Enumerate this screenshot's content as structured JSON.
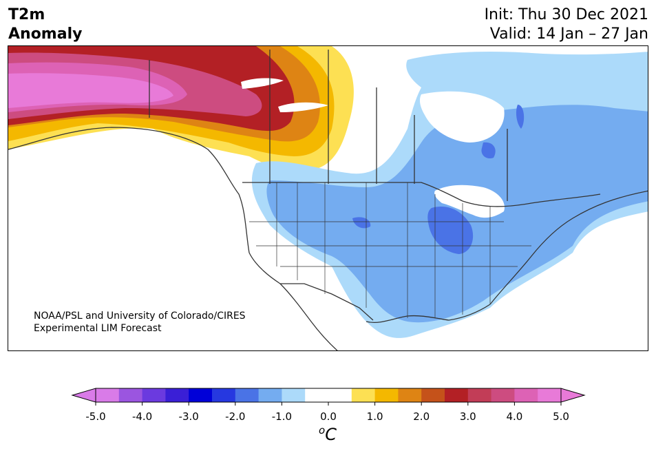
{
  "header": {
    "title_line1": "T2m",
    "title_line2": "Anomaly",
    "init": "Init: Thu 30 Dec 2021",
    "valid": "Valid: 14 Jan – 27 Jan"
  },
  "credit": {
    "line1": "NOAA/PSL and University of Colorado/CIRES",
    "line2": "Experimental LIM Forecast"
  },
  "colorbar": {
    "unit_base": "o",
    "unit_main": "C",
    "tick_labels": [
      "-5.0",
      "-4.0",
      "-3.0",
      "-2.0",
      "-1.0",
      "0.0",
      "1.0",
      "2.0",
      "3.0",
      "4.0",
      "5.0"
    ],
    "colors": [
      "#d97be8",
      "#9b55e0",
      "#6b3adf",
      "#3a1fd6",
      "#0000d8",
      "#2638e0",
      "#4a73e6",
      "#74acf0",
      "#acdafa",
      "#ffffff",
      "#ffffff",
      "#fde053",
      "#f4b800",
      "#de8414",
      "#c5521a",
      "#b32025",
      "#c23d57",
      "#cd4c80",
      "#dd62b5",
      "#e87ad8"
    ],
    "extend_low_color": "#d97be8",
    "extend_high_color": "#e87ad8"
  },
  "map": {
    "region": "North America",
    "anomaly_colors": {
      "extreme_warm": "#e87ad8",
      "very_warm": "#cd4c80",
      "warm_red": "#b32025",
      "warm_orange": "#de8414",
      "warm_gold": "#f4b800",
      "warm_yellow": "#fde053",
      "cool_light": "#acdafa",
      "cool_mid": "#74acf0",
      "cool_dark": "#4a73e6"
    }
  }
}
